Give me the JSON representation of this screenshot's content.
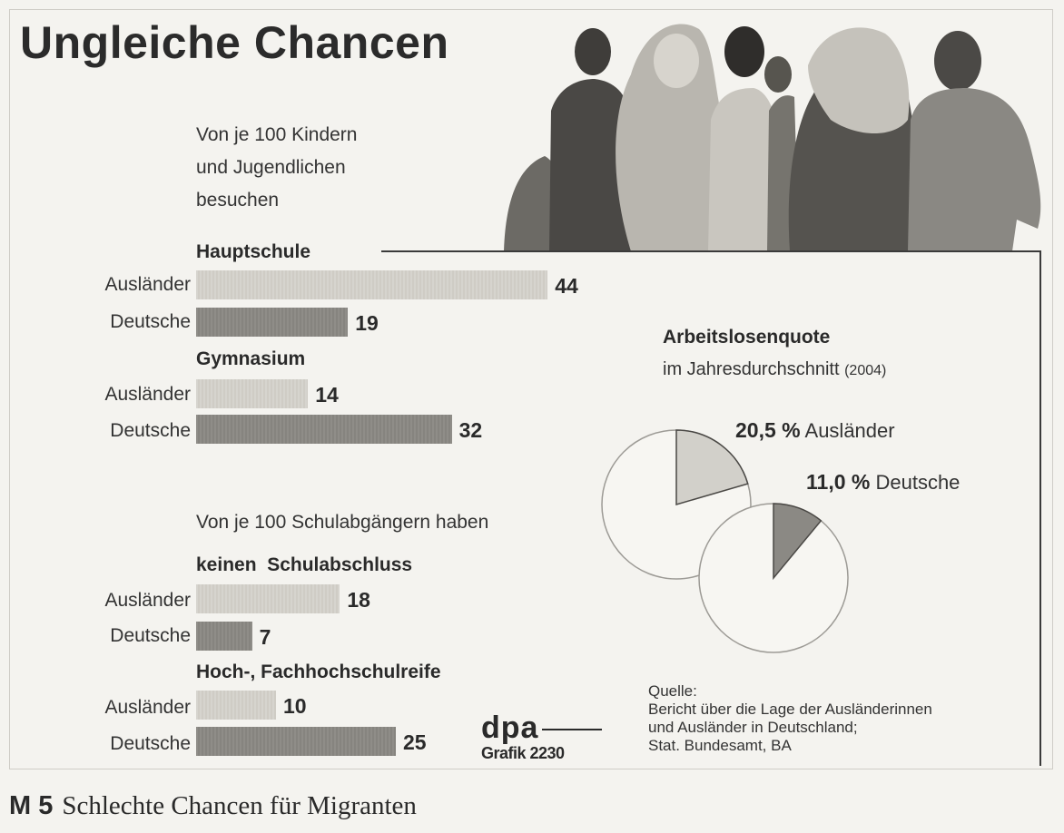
{
  "title": "Ungleiche Chancen",
  "intro_top": [
    "Von je 100 Kindern",
    "und Jugendlichen",
    "besuchen"
  ],
  "intro_bottom": "Von je 100 Schulabgängern haben",
  "chart_data": [
    {
      "type": "bar",
      "orientation": "horizontal",
      "groups": [
        {
          "name": "Hauptschule",
          "series": [
            {
              "name": "Ausländer",
              "value": 44
            },
            {
              "name": "Deutsche",
              "value": 19
            }
          ]
        },
        {
          "name": "Gymnasium",
          "series": [
            {
              "name": "Ausländer",
              "value": 14
            },
            {
              "name": "Deutsche",
              "value": 32
            }
          ]
        },
        {
          "name": "keinen  Schulabschluss",
          "series": [
            {
              "name": "Ausländer",
              "value": 18
            },
            {
              "name": "Deutsche",
              "value": 7
            }
          ]
        },
        {
          "name": "Hoch-, Fachhochschulreife",
          "series": [
            {
              "name": "Ausländer",
              "value": 10
            },
            {
              "name": "Deutsche",
              "value": 25
            }
          ]
        }
      ],
      "colors": {
        "Ausländer": "#d2d0ca",
        "Deutsche": "#8b8984"
      }
    },
    {
      "type": "pie",
      "title": "Arbeitslosenquote",
      "subtitle": "im Jahresdurchschnitt",
      "subtitle_year": "(2004)",
      "slices": [
        {
          "name": "Ausländer",
          "value": 20.5,
          "label": "20,5 %",
          "color": "#d2d0ca"
        },
        {
          "name": "Deutsche",
          "value": 11.0,
          "label": "11,0 %",
          "color": "#8b8984"
        }
      ]
    }
  ],
  "source": [
    "Quelle:",
    "Bericht über die Lage der Ausländerinnen",
    "und Ausländer in Deutschland;",
    "Stat. Bundesamt, BA"
  ],
  "dpa": {
    "mark": "dpa",
    "sub": "Grafik 2230"
  },
  "caption": {
    "m": "M 5",
    "text": "Schlechte Chancen für Migranten"
  }
}
